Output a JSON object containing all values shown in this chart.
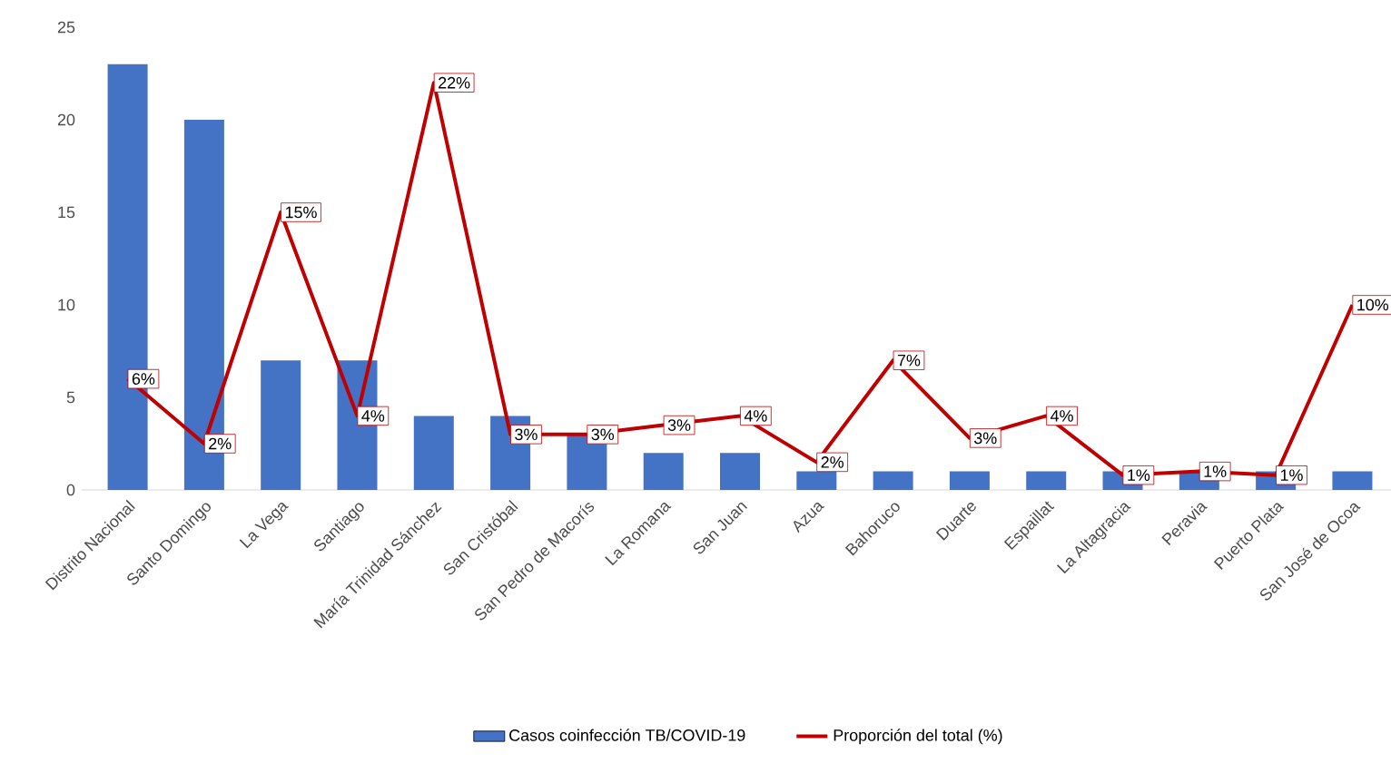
{
  "chart_data": {
    "type": "bar",
    "categories": [
      "Distrito Nacional",
      "Santo Domingo",
      "La Vega",
      "Santiago",
      "María Trinidad Sánchez",
      "San Cristóbal",
      "San Pedro de Macorís",
      "La Romana",
      "San Juan",
      "Azua",
      "Bahoruco",
      "Duarte",
      "Espaillat",
      "La Altagracia",
      "Peravia",
      "Puerto Plata",
      "San José de Ocoa"
    ],
    "series": [
      {
        "name": "Casos coinfección TB/COVID-19",
        "color": "#4472c4",
        "values": [
          23,
          20,
          7,
          7,
          4,
          4,
          3,
          2,
          2,
          1,
          1,
          1,
          1,
          1,
          1,
          1,
          1
        ]
      },
      {
        "name": "Proporción del total (%)",
        "type": "line",
        "color": "#c00000",
        "values": [
          6,
          2.5,
          15,
          4,
          22,
          3,
          3,
          3.5,
          4,
          1.5,
          7,
          2.8,
          4,
          0.8,
          1,
          0.8,
          10
        ],
        "value_labels": [
          "6%",
          "2%",
          "15%",
          "4%",
          "22%",
          "3%",
          "3%",
          "3%",
          "4%",
          "2%",
          "7%",
          "3%",
          "4%",
          "1%",
          "1%",
          "1%",
          "10%"
        ]
      }
    ],
    "ylim": [
      0,
      25
    ],
    "yticks": [
      0,
      5,
      10,
      15,
      20,
      25
    ],
    "legend": "bottom",
    "marker": "none"
  }
}
